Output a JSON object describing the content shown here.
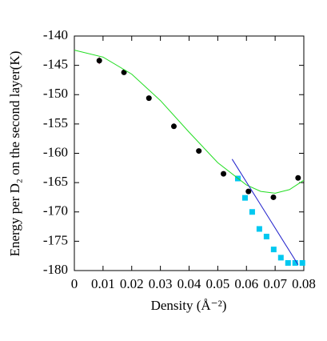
{
  "chart_data": {
    "type": "scatter",
    "xlabel": "Density (Å⁻²)",
    "ylabel": "Energy per D₂ on the second layer(K)",
    "xlim": [
      0,
      0.08
    ],
    "ylim": [
      -180,
      -140
    ],
    "xticks": [
      0,
      0.01,
      0.02,
      0.03,
      0.04,
      0.05,
      0.06,
      0.07,
      0.08
    ],
    "yticks": [
      -180,
      -175,
      -170,
      -165,
      -160,
      -155,
      -150,
      -145,
      -140
    ],
    "series": [
      {
        "kind": "points",
        "marker": "circle",
        "color": "#000000",
        "x": [
          0.0087,
          0.0173,
          0.026,
          0.0347,
          0.0434,
          0.052,
          0.0607,
          0.0694,
          0.078
        ],
        "values": [
          -144.2,
          -146.2,
          -150.6,
          -155.4,
          -159.6,
          -163.5,
          -166.5,
          -167.5,
          -164.2
        ],
        "errors": [
          0.6,
          0.3,
          0.2,
          0.3,
          0.2,
          0.2,
          0.2,
          0.3,
          0.3
        ]
      },
      {
        "kind": "points",
        "marker": "square",
        "color": "#00c8f0",
        "x": [
          0.057,
          0.0595,
          0.062,
          0.0645,
          0.067,
          0.0695,
          0.072,
          0.0745,
          0.077,
          0.0795
        ],
        "values": [
          -164.3,
          -167.6,
          -170,
          -172.9,
          -174.2,
          -176.4,
          -177.8,
          -178.7,
          -178.7,
          -178.7
        ]
      },
      {
        "kind": "line",
        "color": "#22dd22",
        "x": [
          0,
          0.01,
          0.02,
          0.03,
          0.04,
          0.05,
          0.06,
          0.065,
          0.07,
          0.075,
          0.08
        ],
        "values": [
          -142.4,
          -143.6,
          -146.5,
          -151,
          -156.4,
          -161.6,
          -165.4,
          -166.5,
          -166.8,
          -166.2,
          -164.6
        ]
      },
      {
        "kind": "line",
        "color": "#2222cc",
        "x": [
          0.055,
          0.078
        ],
        "values": [
          -161,
          -179
        ]
      }
    ]
  }
}
